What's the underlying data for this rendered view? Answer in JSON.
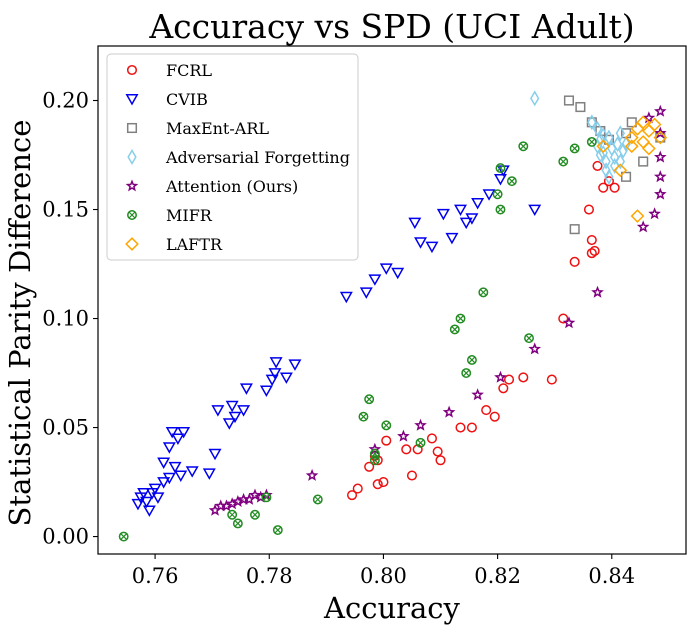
{
  "chart_data": {
    "type": "scatter",
    "title": "Accuracy vs SPD (UCI Adult)",
    "xlabel": "Accuracy",
    "ylabel": "Statistical Parity Difference",
    "xlim": [
      0.75,
      0.853
    ],
    "ylim": [
      -0.008,
      0.225
    ],
    "xticks": [
      0.76,
      0.78,
      0.8,
      0.82,
      0.84
    ],
    "yticks": [
      0.0,
      0.05,
      0.1,
      0.15,
      0.2
    ],
    "xtick_labels": [
      "0.76",
      "0.78",
      "0.80",
      "0.82",
      "0.84"
    ],
    "ytick_labels": [
      "0.00",
      "0.05",
      "0.10",
      "0.15",
      "0.20"
    ],
    "grid": false,
    "legend_position": "top-left",
    "series": [
      {
        "name": "FCRL",
        "marker": "circle",
        "color": "#ee1111",
        "points": [
          [
            0.7955,
            0.022
          ],
          [
            0.7945,
            0.019
          ],
          [
            0.7975,
            0.032
          ],
          [
            0.799,
            0.024
          ],
          [
            0.8,
            0.025
          ],
          [
            0.7985,
            0.037
          ],
          [
            0.8005,
            0.044
          ],
          [
            0.799,
            0.035
          ],
          [
            0.804,
            0.04
          ],
          [
            0.806,
            0.04
          ],
          [
            0.8085,
            0.045
          ],
          [
            0.81,
            0.035
          ],
          [
            0.8095,
            0.039
          ],
          [
            0.805,
            0.028
          ],
          [
            0.8135,
            0.05
          ],
          [
            0.8155,
            0.05
          ],
          [
            0.818,
            0.058
          ],
          [
            0.8195,
            0.055
          ],
          [
            0.821,
            0.068
          ],
          [
            0.822,
            0.072
          ],
          [
            0.8245,
            0.073
          ],
          [
            0.8295,
            0.072
          ],
          [
            0.8315,
            0.1
          ],
          [
            0.8335,
            0.126
          ],
          [
            0.836,
            0.15
          ],
          [
            0.8365,
            0.136
          ],
          [
            0.837,
            0.131
          ],
          [
            0.8365,
            0.13
          ],
          [
            0.8385,
            0.16
          ],
          [
            0.8395,
            0.163
          ],
          [
            0.8405,
            0.16
          ],
          [
            0.8375,
            0.17
          ]
        ]
      },
      {
        "name": "CVIB",
        "marker": "triangle-down",
        "color": "#0000ee",
        "points": [
          [
            0.757,
            0.015
          ],
          [
            0.7575,
            0.018
          ],
          [
            0.758,
            0.02
          ],
          [
            0.7585,
            0.016
          ],
          [
            0.759,
            0.012
          ],
          [
            0.7595,
            0.02
          ],
          [
            0.7605,
            0.018
          ],
          [
            0.76,
            0.022
          ],
          [
            0.7615,
            0.025
          ],
          [
            0.7625,
            0.027
          ],
          [
            0.7635,
            0.032
          ],
          [
            0.7645,
            0.028
          ],
          [
            0.7665,
            0.03
          ],
          [
            0.7695,
            0.029
          ],
          [
            0.7705,
            0.038
          ],
          [
            0.7615,
            0.034
          ],
          [
            0.763,
            0.048
          ],
          [
            0.764,
            0.045
          ],
          [
            0.765,
            0.048
          ],
          [
            0.7625,
            0.041
          ],
          [
            0.771,
            0.058
          ],
          [
            0.7735,
            0.06
          ],
          [
            0.773,
            0.052
          ],
          [
            0.774,
            0.055
          ],
          [
            0.7755,
            0.058
          ],
          [
            0.776,
            0.068
          ],
          [
            0.7795,
            0.067
          ],
          [
            0.7805,
            0.072
          ],
          [
            0.7812,
            0.08
          ],
          [
            0.781,
            0.075
          ],
          [
            0.783,
            0.073
          ],
          [
            0.7845,
            0.079
          ],
          [
            0.7935,
            0.11
          ],
          [
            0.797,
            0.112
          ],
          [
            0.7985,
            0.118
          ],
          [
            0.8005,
            0.123
          ],
          [
            0.8025,
            0.121
          ],
          [
            0.8055,
            0.144
          ],
          [
            0.8065,
            0.135
          ],
          [
            0.8085,
            0.133
          ],
          [
            0.8105,
            0.148
          ],
          [
            0.812,
            0.137
          ],
          [
            0.8135,
            0.15
          ],
          [
            0.8145,
            0.144
          ],
          [
            0.8155,
            0.146
          ],
          [
            0.8165,
            0.153
          ],
          [
            0.8185,
            0.157
          ],
          [
            0.8205,
            0.164
          ],
          [
            0.821,
            0.168
          ],
          [
            0.8265,
            0.15
          ]
        ]
      },
      {
        "name": "MaxEnt-ARL",
        "marker": "square",
        "color": "#808080",
        "points": [
          [
            0.8325,
            0.2
          ],
          [
            0.8345,
            0.197
          ],
          [
            0.8365,
            0.19
          ],
          [
            0.838,
            0.186
          ],
          [
            0.8395,
            0.182
          ],
          [
            0.8425,
            0.185
          ],
          [
            0.8435,
            0.19
          ],
          [
            0.8335,
            0.141
          ],
          [
            0.8425,
            0.165
          ],
          [
            0.8455,
            0.172
          ],
          [
            0.8485,
            0.183
          ]
        ]
      },
      {
        "name": "Adversarial Forgetting",
        "marker": "diamond-thin",
        "color": "#87ceeb",
        "points": [
          [
            0.8265,
            0.201
          ],
          [
            0.8375,
            0.187
          ],
          [
            0.838,
            0.182
          ],
          [
            0.8385,
            0.176
          ],
          [
            0.839,
            0.172
          ],
          [
            0.8395,
            0.183
          ],
          [
            0.84,
            0.178
          ],
          [
            0.8405,
            0.174
          ],
          [
            0.841,
            0.18
          ],
          [
            0.8415,
            0.185
          ],
          [
            0.842,
            0.177
          ],
          [
            0.839,
            0.168
          ],
          [
            0.8395,
            0.165
          ],
          [
            0.8405,
            0.17
          ],
          [
            0.838,
            0.175
          ],
          [
            0.8375,
            0.179
          ],
          [
            0.8385,
            0.184
          ],
          [
            0.8365,
            0.19
          ],
          [
            0.8415,
            0.172
          ],
          [
            0.8425,
            0.18
          ]
        ]
      },
      {
        "name": "Attention (Ours)",
        "marker": "star",
        "color": "#800080",
        "points": [
          [
            0.7705,
            0.012
          ],
          [
            0.7715,
            0.014
          ],
          [
            0.7725,
            0.014
          ],
          [
            0.7735,
            0.015
          ],
          [
            0.7745,
            0.016
          ],
          [
            0.7755,
            0.017
          ],
          [
            0.7765,
            0.017
          ],
          [
            0.7775,
            0.019
          ],
          [
            0.7785,
            0.018
          ],
          [
            0.7795,
            0.019
          ],
          [
            0.7875,
            0.028
          ],
          [
            0.7985,
            0.04
          ],
          [
            0.8035,
            0.046
          ],
          [
            0.8065,
            0.051
          ],
          [
            0.8115,
            0.057
          ],
          [
            0.8165,
            0.065
          ],
          [
            0.8205,
            0.073
          ],
          [
            0.8265,
            0.086
          ],
          [
            0.8325,
            0.098
          ],
          [
            0.8375,
            0.112
          ],
          [
            0.8455,
            0.142
          ],
          [
            0.8475,
            0.148
          ],
          [
            0.8485,
            0.157
          ],
          [
            0.8485,
            0.165
          ],
          [
            0.8485,
            0.174
          ],
          [
            0.8485,
            0.185
          ],
          [
            0.8485,
            0.195
          ],
          [
            0.8465,
            0.192
          ]
        ]
      },
      {
        "name": "MIFR",
        "marker": "circle-x",
        "color": "#228b22",
        "points": [
          [
            0.7545,
            0.0
          ],
          [
            0.7735,
            0.01
          ],
          [
            0.7745,
            0.006
          ],
          [
            0.7775,
            0.01
          ],
          [
            0.7815,
            0.003
          ],
          [
            0.7795,
            0.018
          ],
          [
            0.7885,
            0.017
          ],
          [
            0.7985,
            0.038
          ],
          [
            0.7985,
            0.035
          ],
          [
            0.7965,
            0.055
          ],
          [
            0.7975,
            0.063
          ],
          [
            0.8005,
            0.051
          ],
          [
            0.8065,
            0.043
          ],
          [
            0.8125,
            0.095
          ],
          [
            0.8135,
            0.1
          ],
          [
            0.8145,
            0.075
          ],
          [
            0.8155,
            0.081
          ],
          [
            0.8175,
            0.112
          ],
          [
            0.8225,
            0.163
          ],
          [
            0.82,
            0.157
          ],
          [
            0.8205,
            0.15
          ],
          [
            0.8205,
            0.169
          ],
          [
            0.8245,
            0.179
          ],
          [
            0.8255,
            0.091
          ],
          [
            0.8315,
            0.172
          ],
          [
            0.8335,
            0.178
          ],
          [
            0.8365,
            0.181
          ]
        ]
      },
      {
        "name": "LAFTR",
        "marker": "diamond",
        "color": "#ffa500",
        "points": [
          [
            0.8415,
            0.168
          ],
          [
            0.8435,
            0.183
          ],
          [
            0.8445,
            0.187
          ],
          [
            0.8455,
            0.19
          ],
          [
            0.8465,
            0.186
          ],
          [
            0.8475,
            0.189
          ],
          [
            0.8485,
            0.183
          ],
          [
            0.8455,
            0.181
          ],
          [
            0.8445,
            0.147
          ],
          [
            0.8435,
            0.179
          ],
          [
            0.8465,
            0.178
          ],
          [
            0.8385,
            0.179
          ]
        ]
      }
    ]
  }
}
